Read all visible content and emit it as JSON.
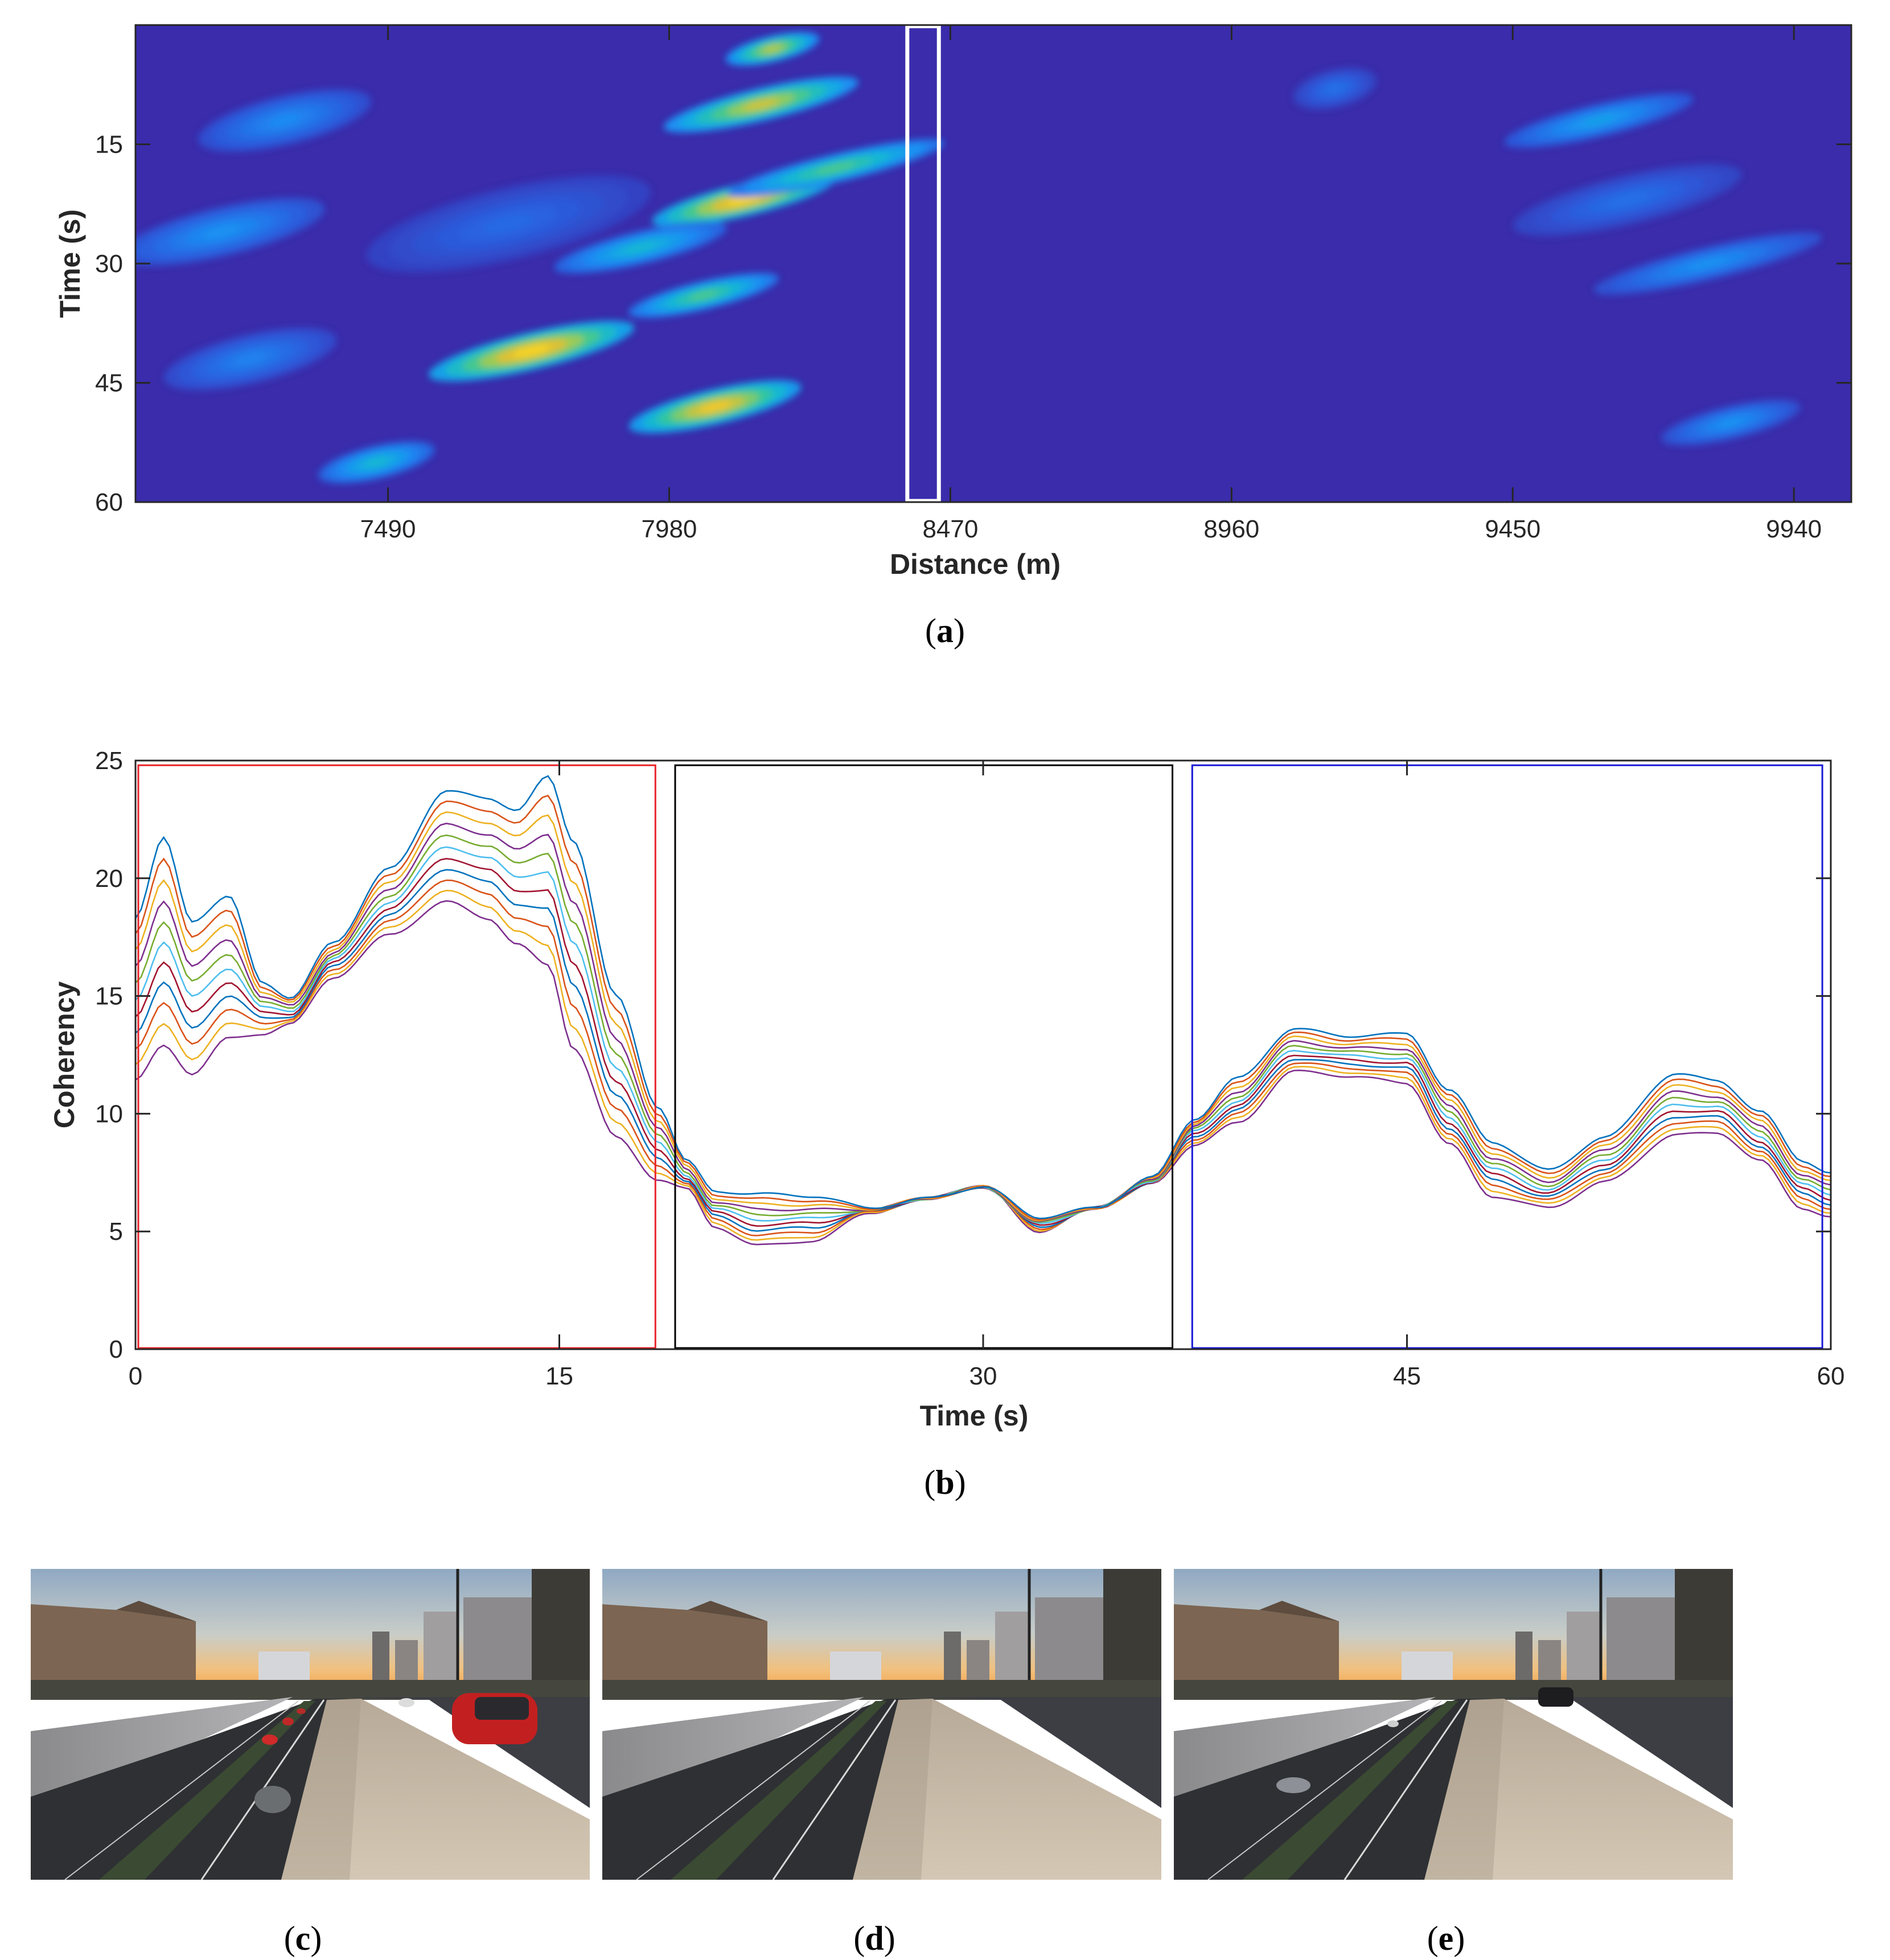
{
  "captions": {
    "a": {
      "open": "(",
      "letter": "a",
      "close": ")"
    },
    "b": {
      "open": "(",
      "letter": "b",
      "close": ")"
    },
    "c": {
      "open": "(",
      "letter": "c",
      "close": ")"
    },
    "d": {
      "open": "(",
      "letter": "d",
      "close": ")"
    },
    "e": {
      "open": "(",
      "letter": "e",
      "close": ")"
    }
  },
  "colors": {
    "heatmap_background": "#3a2cab",
    "heatmap_colormap": [
      "#3a2cab",
      "#2b5ddd",
      "#1d8df4",
      "#12b4dc",
      "#35c79a",
      "#9ccb54",
      "#eebd2b",
      "#f9e125"
    ],
    "series_palette": [
      "#0072BD",
      "#D95319",
      "#EDB120",
      "#7E2F8E",
      "#77AC30",
      "#4DBEEE",
      "#A2142F"
    ],
    "box_red": "#e8242b",
    "box_black": "#000000",
    "box_blue": "#1a1ad6",
    "highlight_box": "#ffffff"
  },
  "chart_data": [
    {
      "panel": "a",
      "type": "heatmap",
      "xlabel": "Distance (m)",
      "ylabel": "Time (s)",
      "xlim": [
        7050,
        10040
      ],
      "ylim": [
        0,
        60
      ],
      "y_reversed": true,
      "xticks": [
        7490,
        7980,
        8470,
        8960,
        9450,
        9940
      ],
      "yticks": [
        15,
        30,
        45,
        60
      ],
      "colormap": "parula",
      "highlight_box": {
        "x_range": [
          8395,
          8450
        ],
        "y_range": [
          0,
          60
        ]
      },
      "hotspots": [
        {
          "x": 8140,
          "y": 10,
          "peak": 0.8,
          "length": 340,
          "width": 26
        },
        {
          "x": 8110,
          "y": 22,
          "peak": 0.95,
          "length": 320,
          "width": 26
        },
        {
          "x": 7740,
          "y": 41,
          "peak": 0.95,
          "length": 360,
          "width": 30
        },
        {
          "x": 8060,
          "y": 48,
          "peak": 0.9,
          "length": 300,
          "width": 28
        },
        {
          "x": 8040,
          "y": 34,
          "peak": 0.6,
          "length": 260,
          "width": 22
        },
        {
          "x": 8270,
          "y": 18,
          "peak": 0.6,
          "length": 380,
          "width": 22
        },
        {
          "x": 8160,
          "y": 3,
          "peak": 0.75,
          "length": 160,
          "width": 20
        },
        {
          "x": 7930,
          "y": 28,
          "peak": 0.45,
          "length": 300,
          "width": 26
        },
        {
          "x": 7470,
          "y": 55,
          "peak": 0.45,
          "length": 200,
          "width": 26
        },
        {
          "x": 7200,
          "y": 26,
          "peak": 0.3,
          "length": 360,
          "width": 40
        },
        {
          "x": 7310,
          "y": 12,
          "peak": 0.28,
          "length": 300,
          "width": 40
        },
        {
          "x": 7250,
          "y": 42,
          "peak": 0.25,
          "length": 300,
          "width": 40
        },
        {
          "x": 7700,
          "y": 25,
          "peak": 0.18,
          "length": 500,
          "width": 60
        },
        {
          "x": 9600,
          "y": 12,
          "peak": 0.35,
          "length": 330,
          "width": 26
        },
        {
          "x": 9790,
          "y": 30,
          "peak": 0.3,
          "length": 400,
          "width": 26
        },
        {
          "x": 9830,
          "y": 50,
          "peak": 0.3,
          "length": 240,
          "width": 26
        },
        {
          "x": 9650,
          "y": 22,
          "peak": 0.2,
          "length": 400,
          "width": 40
        },
        {
          "x": 9140,
          "y": 8,
          "peak": 0.2,
          "length": 140,
          "width": 30
        }
      ]
    },
    {
      "panel": "b",
      "type": "line",
      "xlabel": "Time (s)",
      "ylabel": "Coherency",
      "xlim": [
        0,
        60
      ],
      "ylim": [
        0,
        25
      ],
      "xticks": [
        0,
        15,
        30,
        45,
        60
      ],
      "yticks": [
        0,
        5,
        10,
        15,
        20,
        25
      ],
      "series_count": 11,
      "series_style": "stacked offsets, uppermost series (first) to lowermost series (last)",
      "envelope": {
        "x": [
          0,
          1,
          2,
          3.3,
          4.5,
          5.5,
          7,
          9,
          11,
          12.5,
          13.5,
          14.6,
          15.5,
          17,
          18.5,
          19.5,
          20.5,
          22,
          24,
          26,
          28,
          30,
          32,
          34,
          36,
          37.5,
          39,
          41,
          43,
          45,
          46.5,
          48,
          50,
          52,
          54.5,
          56,
          57.5,
          59,
          60
        ],
        "upper": [
          18.3,
          21.7,
          18.2,
          19.2,
          15.6,
          14.9,
          17.3,
          20.4,
          23.7,
          23.4,
          22.9,
          24.3,
          21.6,
          15.0,
          10.3,
          8.0,
          6.7,
          6.6,
          6.5,
          6.0,
          6.4,
          6.9,
          5.6,
          6.0,
          7.3,
          9.8,
          11.5,
          13.6,
          13.3,
          13.4,
          11.0,
          8.8,
          7.6,
          9.0,
          11.7,
          11.4,
          10.1,
          8.0,
          7.5
        ],
        "lower": [
          11.4,
          12.9,
          11.7,
          13.2,
          13.4,
          13.8,
          15.8,
          17.6,
          19.0,
          18.3,
          17.2,
          16.3,
          12.8,
          9.0,
          7.2,
          6.8,
          5.2,
          4.4,
          4.6,
          5.8,
          6.4,
          6.9,
          5.0,
          6.0,
          7.0,
          8.7,
          9.6,
          11.8,
          11.6,
          11.3,
          8.7,
          6.5,
          6.0,
          7.1,
          9.1,
          9.2,
          8.0,
          6.0,
          5.6
        ]
      },
      "boxes": [
        {
          "color": "red",
          "x_range": [
            0.1,
            18.4
          ],
          "y_range": [
            0,
            24.8
          ]
        },
        {
          "color": "black",
          "x_range": [
            19.1,
            36.7
          ],
          "y_range": [
            0,
            24.8
          ]
        },
        {
          "color": "blue",
          "x_range": [
            37.4,
            59.7
          ],
          "y_range": [
            0,
            24.8
          ]
        }
      ]
    }
  ],
  "photos": [
    {
      "panel": "c",
      "cars": "many"
    },
    {
      "panel": "d",
      "cars": "none"
    },
    {
      "panel": "e",
      "cars": "few"
    }
  ]
}
